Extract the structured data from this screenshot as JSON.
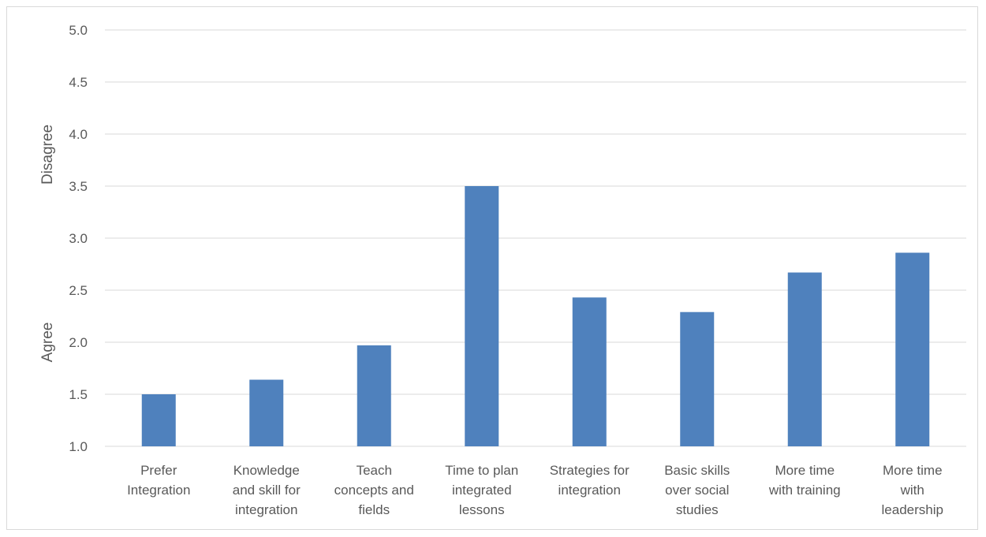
{
  "chart_data": {
    "type": "bar",
    "categories": [
      [
        "Prefer",
        "Integration"
      ],
      [
        "Knowledge",
        "and skill for",
        "integration"
      ],
      [
        "Teach",
        "concepts and",
        "fields"
      ],
      [
        "Time to plan",
        "integrated",
        "lessons"
      ],
      [
        "Strategies for",
        "integration"
      ],
      [
        "Basic skills",
        "over social",
        "studies"
      ],
      [
        "More time",
        "with training"
      ],
      [
        "More time",
        "with",
        "leadership"
      ]
    ],
    "values": [
      1.5,
      1.64,
      1.97,
      3.5,
      2.43,
      2.29,
      2.67,
      2.86
    ],
    "ylim": [
      1.0,
      5.0
    ],
    "yticks": [
      "1.0",
      "1.5",
      "2.0",
      "2.5",
      "3.0",
      "3.5",
      "4.0",
      "4.5",
      "5.0"
    ],
    "ylabel_low": "Agree",
    "ylabel_high": "Disagree",
    "grid": true,
    "bar_color": "#4f81bd",
    "grid_color": "#d9d9d9"
  }
}
